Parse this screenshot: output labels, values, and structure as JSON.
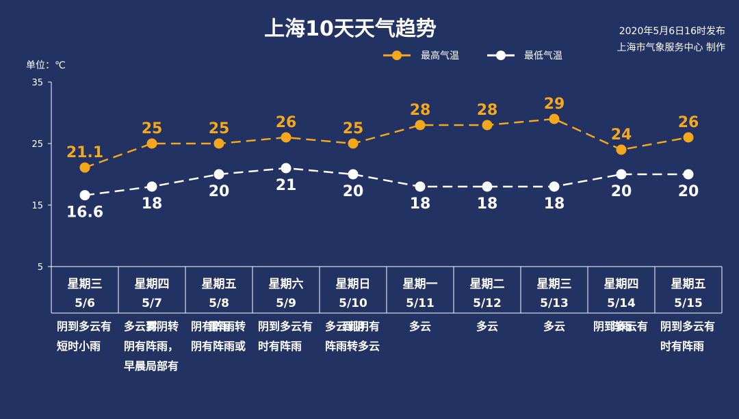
{
  "title": "上海10天天气趋势",
  "publish": {
    "time": "2020年5月6日16时发布",
    "producer": "上海市气象服务中心 制作"
  },
  "colors": {
    "background": "#223263",
    "high": "#f5a81c",
    "low": "#ffffff"
  },
  "chart_data": {
    "type": "line",
    "unit_label": "单位：℃",
    "ylim": [
      5,
      35
    ],
    "yticks": [
      5,
      15,
      25,
      35
    ],
    "legend_position": "top-right",
    "series": [
      {
        "name": "最高气温",
        "key": "high",
        "values": [
          21.1,
          25,
          25,
          26,
          25,
          28,
          28,
          29,
          24,
          26
        ],
        "labels": [
          "21.1",
          "25",
          "25",
          "26",
          "25",
          "28",
          "28",
          "29",
          "24",
          "26"
        ]
      },
      {
        "name": "最低气温",
        "key": "low",
        "values": [
          16.6,
          18,
          20,
          21,
          20,
          18,
          18,
          18,
          20,
          20
        ],
        "labels": [
          "16.6",
          "18",
          "20",
          "21",
          "20",
          "18",
          "18",
          "18",
          "20",
          "20"
        ]
      }
    ],
    "days": [
      {
        "weekday": "星期三",
        "date": "5/6",
        "desc": [
          "阴到多云有",
          "短时小雨"
        ]
      },
      {
        "weekday": "星期四",
        "date": "5/7",
        "desc": [
          "多云到阴转",
          "阴有阵雨，",
          "早晨局部有",
          "雾"
        ]
      },
      {
        "weekday": "星期五",
        "date": "5/8",
        "desc": [
          "阴有阵雨转",
          "阴有阵雨或",
          "雷雨"
        ]
      },
      {
        "weekday": "星期六",
        "date": "5/9",
        "desc": [
          "阴到多云有",
          "时有阵雨"
        ]
      },
      {
        "weekday": "星期日",
        "date": "5/10",
        "desc": [
          "多云到阴有",
          "阵雨转多云",
          "到阴"
        ]
      },
      {
        "weekday": "星期一",
        "date": "5/11",
        "desc": [
          "多云"
        ]
      },
      {
        "weekday": "星期二",
        "date": "5/12",
        "desc": [
          "多云"
        ]
      },
      {
        "weekday": "星期三",
        "date": "5/13",
        "desc": [
          "多云"
        ]
      },
      {
        "weekday": "星期四",
        "date": "5/14",
        "desc": [
          "阴到多云有",
          "阵雨"
        ]
      },
      {
        "weekday": "星期五",
        "date": "5/15",
        "desc": [
          "阴到多云有",
          "时有阵雨"
        ]
      }
    ]
  }
}
